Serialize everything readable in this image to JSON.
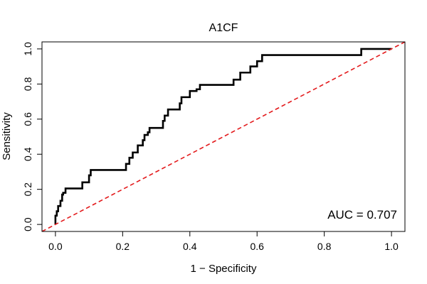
{
  "chart_data": {
    "type": "line",
    "title": "A1CF",
    "xlabel": "1 − Specificity",
    "ylabel": "Sensitivity",
    "xlim": [
      -0.04,
      1.04
    ],
    "ylim": [
      -0.04,
      1.04
    ],
    "xticks": [
      0.0,
      0.2,
      0.4,
      0.6,
      0.8,
      1.0
    ],
    "yticks": [
      0.0,
      0.2,
      0.4,
      0.6,
      0.8,
      1.0
    ],
    "xtick_labels": [
      "0.0",
      "0.2",
      "0.4",
      "0.6",
      "0.8",
      "1.0"
    ],
    "ytick_labels": [
      "0.0",
      "0.2",
      "0.4",
      "0.6",
      "0.8",
      "1.0"
    ],
    "grid": false,
    "series": [
      {
        "color": "#000000",
        "style": "solid",
        "x": [
          0.0,
          0.0,
          0.004,
          0.004,
          0.008,
          0.008,
          0.015,
          0.015,
          0.02,
          0.02,
          0.023,
          0.023,
          0.03,
          0.03,
          0.08,
          0.08,
          0.1,
          0.1,
          0.105,
          0.105,
          0.21,
          0.21,
          0.22,
          0.22,
          0.23,
          0.23,
          0.245,
          0.245,
          0.26,
          0.26,
          0.265,
          0.265,
          0.275,
          0.275,
          0.28,
          0.28,
          0.32,
          0.32,
          0.325,
          0.325,
          0.335,
          0.335,
          0.37,
          0.37,
          0.375,
          0.375,
          0.4,
          0.4,
          0.42,
          0.42,
          0.43,
          0.43,
          0.53,
          0.53,
          0.55,
          0.55,
          0.58,
          0.58,
          0.6,
          0.6,
          0.615,
          0.615,
          0.91,
          0.91,
          1.0
        ],
        "y": [
          0.0,
          0.05,
          0.05,
          0.075,
          0.075,
          0.105,
          0.105,
          0.135,
          0.135,
          0.17,
          0.17,
          0.18,
          0.18,
          0.205,
          0.205,
          0.24,
          0.24,
          0.28,
          0.28,
          0.31,
          0.31,
          0.345,
          0.345,
          0.38,
          0.38,
          0.41,
          0.41,
          0.45,
          0.45,
          0.48,
          0.48,
          0.51,
          0.51,
          0.525,
          0.525,
          0.55,
          0.55,
          0.59,
          0.59,
          0.62,
          0.62,
          0.655,
          0.655,
          0.69,
          0.69,
          0.725,
          0.725,
          0.76,
          0.76,
          0.77,
          0.77,
          0.795,
          0.795,
          0.825,
          0.825,
          0.865,
          0.865,
          0.9,
          0.9,
          0.93,
          0.93,
          0.965,
          0.965,
          1.0,
          1.0
        ]
      },
      {
        "color": "#e31a1c",
        "style": "dashed",
        "x": [
          -0.04,
          1.04
        ],
        "y": [
          -0.04,
          1.04
        ]
      }
    ],
    "annotation": "AUC = 0.707",
    "annotation_position": "bottom-right"
  }
}
